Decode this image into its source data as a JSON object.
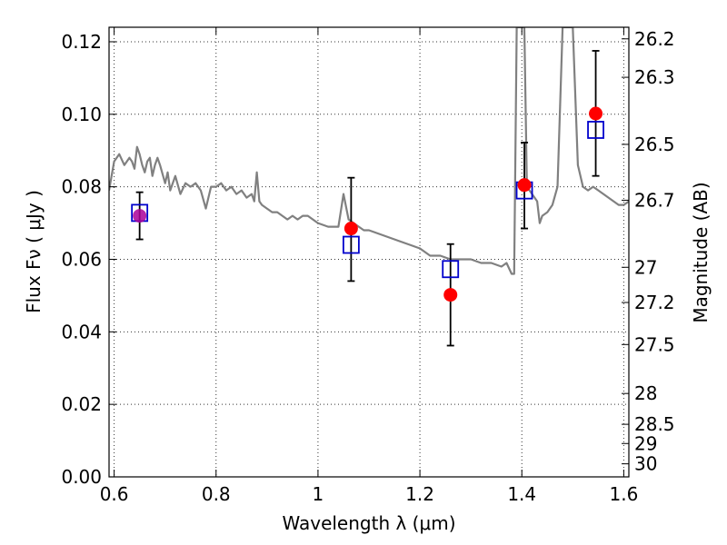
{
  "chart_data": {
    "type": "scatter",
    "xlabel": "Wavelength  λ (μm)",
    "ylabel": "Flux  Fν  ( μJy )",
    "ylabel_right": "Magnitude (AB)",
    "xlim": [
      0.59,
      1.61
    ],
    "ylim": [
      0.0,
      0.124
    ],
    "x_ticks": [
      0.6,
      0.8,
      1.0,
      1.2,
      1.4,
      1.6
    ],
    "x_tick_labels": [
      "0.6",
      "0.8",
      "1",
      "1.2",
      "1.4",
      "1.6"
    ],
    "y_ticks": [
      0.0,
      0.02,
      0.04,
      0.06,
      0.08,
      0.1,
      0.12
    ],
    "y_tick_labels": [
      "0.00",
      "0.02",
      "0.04",
      "0.06",
      "0.08",
      "0.10",
      "0.12"
    ],
    "right_ticks": [
      {
        "label": "26.2",
        "flux": 0.1208
      },
      {
        "label": "26.3",
        "flux": 0.1102
      },
      {
        "label": "26.5",
        "flux": 0.0917
      },
      {
        "label": "26.7",
        "flux": 0.0763
      },
      {
        "label": "27",
        "flux": 0.0578
      },
      {
        "label": "27.2",
        "flux": 0.0481
      },
      {
        "label": "27.5",
        "flux": 0.0365
      },
      {
        "label": "28",
        "flux": 0.023
      },
      {
        "label": "28.5",
        "flux": 0.0145
      },
      {
        "label": "29",
        "flux": 0.0092
      },
      {
        "label": "30",
        "flux": 0.0036
      }
    ],
    "grid": true,
    "series": [
      {
        "kind": "line",
        "color": "#808080",
        "x": [
          0.59,
          0.6,
          0.605,
          0.61,
          0.62,
          0.63,
          0.635,
          0.64,
          0.645,
          0.65,
          0.655,
          0.66,
          0.665,
          0.67,
          0.675,
          0.68,
          0.685,
          0.69,
          0.7,
          0.705,
          0.71,
          0.72,
          0.73,
          0.74,
          0.75,
          0.76,
          0.77,
          0.78,
          0.79,
          0.8,
          0.81,
          0.82,
          0.83,
          0.84,
          0.85,
          0.86,
          0.87,
          0.875,
          0.88,
          0.885,
          0.89,
          0.9,
          0.91,
          0.92,
          0.93,
          0.94,
          0.95,
          0.96,
          0.97,
          0.98,
          0.99,
          1.0,
          1.02,
          1.04,
          1.05,
          1.06,
          1.07,
          1.08,
          1.09,
          1.1,
          1.12,
          1.14,
          1.16,
          1.18,
          1.2,
          1.22,
          1.24,
          1.26,
          1.28,
          1.3,
          1.32,
          1.34,
          1.36,
          1.37,
          1.38,
          1.385,
          1.39,
          1.395,
          1.4,
          1.405,
          1.41,
          1.42,
          1.43,
          1.435,
          1.44,
          1.45,
          1.46,
          1.47,
          1.48,
          1.49,
          1.5,
          1.51,
          1.52,
          1.53,
          1.54,
          1.55,
          1.56,
          1.57,
          1.58,
          1.59,
          1.6,
          1.61
        ],
        "y": [
          0.079,
          0.087,
          0.088,
          0.089,
          0.086,
          0.088,
          0.087,
          0.085,
          0.091,
          0.089,
          0.086,
          0.084,
          0.087,
          0.088,
          0.083,
          0.086,
          0.088,
          0.086,
          0.081,
          0.084,
          0.079,
          0.083,
          0.078,
          0.081,
          0.08,
          0.081,
          0.079,
          0.074,
          0.08,
          0.08,
          0.081,
          0.079,
          0.08,
          0.078,
          0.079,
          0.077,
          0.078,
          0.076,
          0.084,
          0.076,
          0.075,
          0.074,
          0.073,
          0.073,
          0.072,
          0.071,
          0.072,
          0.071,
          0.072,
          0.072,
          0.071,
          0.07,
          0.069,
          0.069,
          0.078,
          0.071,
          0.07,
          0.069,
          0.068,
          0.068,
          0.067,
          0.066,
          0.065,
          0.064,
          0.063,
          0.061,
          0.061,
          0.06,
          0.06,
          0.06,
          0.059,
          0.059,
          0.058,
          0.059,
          0.056,
          0.056,
          0.124,
          0.124,
          0.124,
          0.124,
          0.08,
          0.078,
          0.076,
          0.07,
          0.072,
          0.073,
          0.075,
          0.08,
          0.124,
          0.124,
          0.124,
          0.086,
          0.08,
          0.079,
          0.08,
          0.079,
          0.078,
          0.077,
          0.076,
          0.075,
          0.075,
          0.076
        ]
      },
      {
        "kind": "observed",
        "color": "#ff0000",
        "x": [
          0.65,
          1.065,
          1.26,
          1.405,
          1.545
        ],
        "y": [
          0.072,
          0.0685,
          0.0502,
          0.0805,
          0.1002
        ],
        "yerr_low": [
          0.0655,
          0.054,
          0.0362,
          0.0685,
          0.083
        ],
        "yerr_high": [
          0.0785,
          0.0825,
          0.0642,
          0.0922,
          0.1175
        ]
      },
      {
        "kind": "model",
        "color": "#0000cc",
        "x": [
          0.65,
          1.065,
          1.26,
          1.405,
          1.545
        ],
        "y": [
          0.0728,
          0.064,
          0.0573,
          0.079,
          0.0957
        ]
      }
    ]
  }
}
